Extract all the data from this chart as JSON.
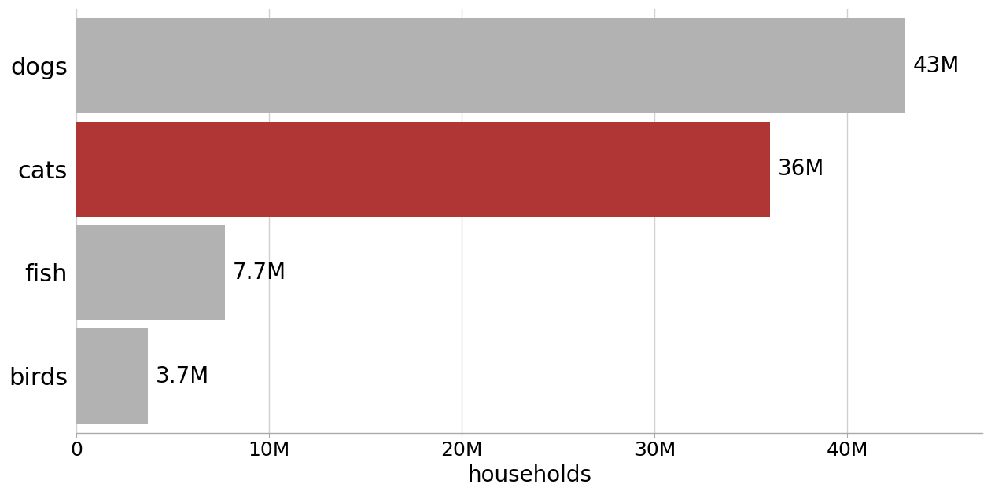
{
  "categories": [
    "dogs",
    "cats",
    "fish",
    "birds"
  ],
  "values": [
    43,
    36,
    7.7,
    3.7
  ],
  "bar_colors": [
    "#b2b2b2",
    "#b03535",
    "#b2b2b2",
    "#b2b2b2"
  ],
  "labels": [
    "43M",
    "36M",
    "7.7M",
    "3.7M"
  ],
  "xlabel": "households",
  "xlim": [
    0,
    47
  ],
  "xticks": [
    0,
    10,
    20,
    30,
    40
  ],
  "xtick_labels": [
    "0",
    "10M",
    "20M",
    "30M",
    "40M"
  ],
  "background_color": "#ffffff",
  "bar_height": 0.92,
  "label_fontsize": 20,
  "tick_fontsize": 18,
  "xlabel_fontsize": 20,
  "ytick_fontsize": 22
}
